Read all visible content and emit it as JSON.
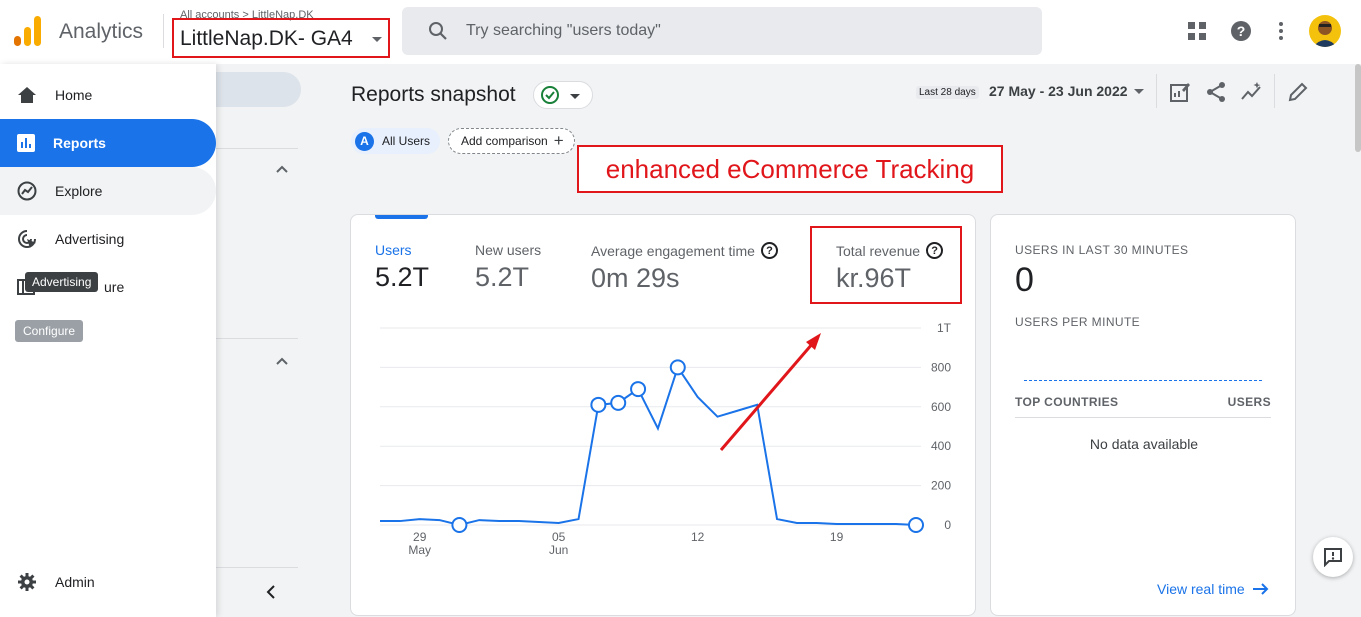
{
  "header": {
    "app_name": "Analytics",
    "breadcrumb": "All accounts > LittleNap.DK",
    "property_name": "LittleNap.DK- GA4",
    "search_placeholder": "Try searching \"users today\"",
    "icons": [
      "apps-grid-icon",
      "help-icon",
      "more-vert-icon",
      "avatar"
    ]
  },
  "sidebar": {
    "items": [
      {
        "label": "Home",
        "icon": "home-icon"
      },
      {
        "label": "Reports",
        "icon": "reports-icon",
        "active": true
      },
      {
        "label": "Explore",
        "icon": "explore-icon"
      },
      {
        "label": "Advertising",
        "icon": "advertising-icon"
      },
      {
        "label": "ure",
        "icon": "configure-icon"
      },
      {
        "label": "Admin",
        "icon": "gear-icon"
      }
    ],
    "tooltip": "Advertising",
    "configure_badge": "Configure"
  },
  "report": {
    "title": "Reports snapshot",
    "date_label": "Last 28 days",
    "date_range": "27 May - 23 Jun 2022",
    "comparison_chip": "All Users",
    "comparison_chip_letter": "A",
    "add_comparison": "Add comparison",
    "annotation": "enhanced eCommerce Tracking"
  },
  "metrics": [
    {
      "label": "Users",
      "value": "5.2T",
      "active": true
    },
    {
      "label": "New users",
      "value": "5.2T"
    },
    {
      "label": "Average engagement time",
      "value": "0m 29s",
      "help": true
    },
    {
      "label": "Total revenue",
      "value": "kr.96T",
      "help": true
    }
  ],
  "chart_data": {
    "type": "line",
    "x": [
      "27 May",
      "28 May",
      "29 May",
      "30 May",
      "31 May",
      "1 Jun",
      "2 Jun",
      "3 Jun",
      "4 Jun",
      "5 Jun",
      "6 Jun",
      "7 Jun",
      "8 Jun",
      "9 Jun",
      "10 Jun",
      "11 Jun",
      "12 Jun",
      "13 Jun",
      "14 Jun",
      "15 Jun",
      "16 Jun",
      "17 Jun",
      "18 Jun",
      "19 Jun",
      "20 Jun",
      "21 Jun",
      "22 Jun",
      "23 Jun"
    ],
    "series": [
      {
        "values": [
          20,
          20,
          30,
          25,
          0,
          25,
          20,
          20,
          15,
          10,
          30,
          610,
          620,
          690,
          490,
          800,
          650,
          550,
          580,
          610,
          30,
          10,
          10,
          5,
          5,
          5,
          5,
          0
        ]
      }
    ],
    "x_ticks": [
      {
        "label": "29",
        "sub": "May",
        "index": 2
      },
      {
        "label": "05",
        "sub": "Jun",
        "index": 9
      },
      {
        "label": "12",
        "sub": "",
        "index": 16
      },
      {
        "label": "19",
        "sub": "",
        "index": 23
      }
    ],
    "y_ticks": [
      "0",
      "200",
      "400",
      "600",
      "800",
      "1T"
    ],
    "ylim": [
      0,
      1000
    ],
    "markers": [
      4,
      11,
      12,
      13,
      15,
      27
    ],
    "colors": {
      "line": "#1a73e8"
    }
  },
  "realtime": {
    "users_label": "USERS IN LAST 30 MINUTES",
    "users_value": "0",
    "per_minute_label": "USERS PER MINUTE",
    "countries_label": "TOP COUNTRIES",
    "users_col": "USERS",
    "no_data": "No data available",
    "view_link": "View real time"
  }
}
